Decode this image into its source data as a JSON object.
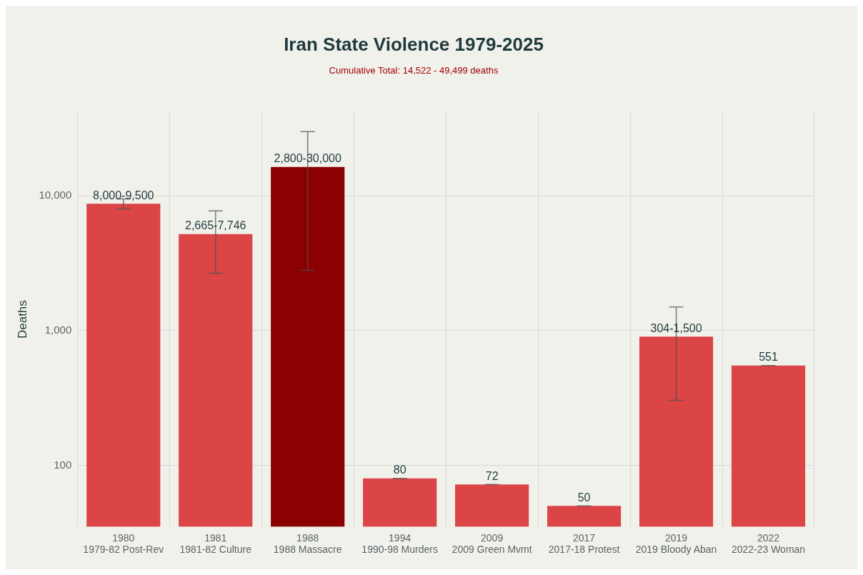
{
  "chart_data": {
    "type": "bar",
    "title": "Iran State Violence 1979-2025",
    "subtitle": "Cumulative Total: 14,522 - 49,499 deaths",
    "ylabel": "Deaths",
    "categories": [
      "1980\n1979-82 Post-Rev",
      "1981\n1981-82 Culture",
      "1988\n1988 Massacre",
      "1994\n1990-98 Murders",
      "2009\n2009 Green Mvmt",
      "2017\n2017-18 Protest",
      "2019\n2019 Bloody Aban",
      "2022\n2022-23 Woman"
    ],
    "values": [
      8750,
      5205.5,
      16400,
      80,
      72,
      50,
      902,
      551
    ],
    "colors": [
      "#db4545",
      "#db4545",
      "#8b0000",
      "#db4545",
      "#db4545",
      "#db4545",
      "#db4545",
      "#db4545"
    ],
    "errors": [
      [
        8000,
        9500
      ],
      [
        2665,
        7746
      ],
      [
        2800,
        30000
      ],
      0,
      0,
      0,
      [
        304,
        1500
      ],
      0
    ],
    "value_labels": [
      "8,000-9,500",
      "2,665-7,746",
      "2,800-30,000",
      "80",
      "72",
      "50",
      "304-1,500",
      "551"
    ],
    "log": true,
    "ylim": [
      35,
      42000
    ],
    "yticks": [
      {
        "value": 100,
        "label": "100"
      },
      {
        "value": 1000,
        "label": "1,000"
      },
      {
        "value": 10000,
        "label": "10,000"
      }
    ],
    "grid": true,
    "legend": false
  }
}
